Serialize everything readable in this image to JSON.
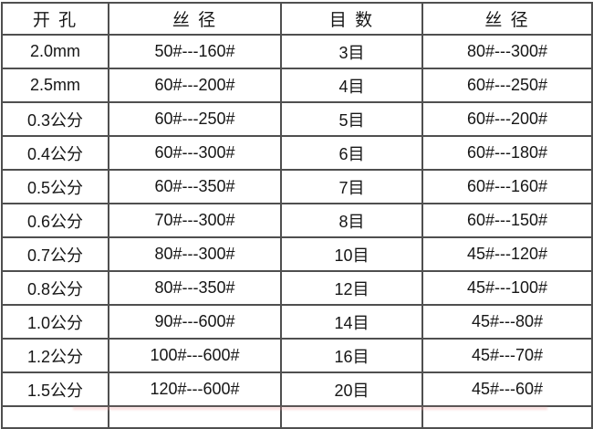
{
  "table": {
    "headers": [
      "开 孔",
      "丝 径",
      "目 数",
      "丝 径"
    ],
    "rows": [
      [
        "2.0mm",
        "50#---160#",
        "3目",
        "80#---300#"
      ],
      [
        "2.5mm",
        "60#---200#",
        "4目",
        "60#---250#"
      ],
      [
        "0.3公分",
        "60#---250#",
        "5目",
        "60#---200#"
      ],
      [
        "0.4公分",
        "60#---300#",
        "6目",
        "60#---180#"
      ],
      [
        "0.5公分",
        "60#---350#",
        "7目",
        "60#---160#"
      ],
      [
        "0.6公分",
        "70#---300#",
        "8目",
        "60#---150#"
      ],
      [
        "0.7公分",
        "80#---300#",
        "10目",
        "45#---120#"
      ],
      [
        "0.8公分",
        "80#---350#",
        "12目",
        "45#---100#"
      ],
      [
        "1.0公分",
        "90#---600#",
        "14目",
        "45#---80#"
      ],
      [
        "1.2公分",
        "100#---600#",
        "16目",
        "45#---70#"
      ],
      [
        "1.5公分",
        "120#---600#",
        "20目",
        "45#---60#"
      ]
    ]
  },
  "colors": {
    "border": "#4f4f4f",
    "text": "#161616",
    "background": "#ffffff",
    "watermark_hint": "#f2a0a0"
  }
}
